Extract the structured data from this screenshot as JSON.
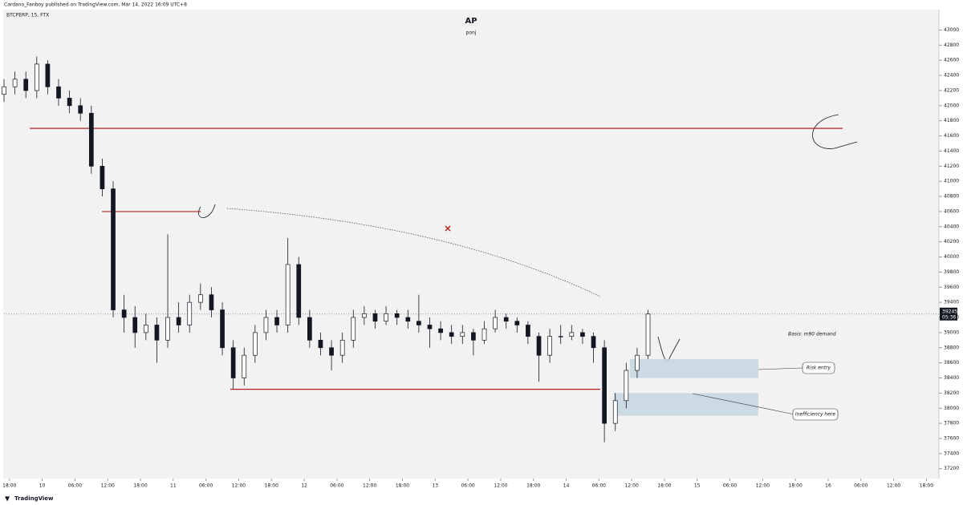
{
  "header": "Cardano_Fanboy published on TradingView.com, Mar 14, 2022 16:09 UTC+8",
  "footer": "TradingView",
  "chart_data": {
    "type": "candlestick",
    "symbol": "BTCPERP, 15, FTX",
    "title": "AP",
    "subtitle": "ponj",
    "x": [
      -1,
      1,
      3,
      5,
      7,
      9,
      11,
      13,
      15,
      17,
      19,
      21,
      23,
      25,
      27,
      29,
      31,
      33,
      35,
      37,
      39,
      41,
      43,
      45,
      47,
      49,
      51,
      53,
      55,
      57,
      59,
      61,
      63,
      65,
      67,
      69,
      71,
      73,
      75,
      77,
      79,
      81,
      83,
      85,
      87,
      89,
      91,
      93,
      95,
      97,
      99,
      101,
      103,
      105,
      107,
      109,
      111,
      113,
      115,
      117
    ],
    "open": [
      42150,
      42250,
      42350,
      42200,
      42550,
      42250,
      42100,
      42000,
      41900,
      41200,
      40900,
      39300,
      39200,
      39000,
      39100,
      38900,
      39200,
      39100,
      39400,
      39500,
      39300,
      38800,
      38400,
      38700,
      39000,
      39200,
      39100,
      39900,
      39200,
      38900,
      38800,
      38700,
      38900,
      39200,
      39250,
      39150,
      39250,
      39200,
      39150,
      39100,
      39050,
      39000,
      38950,
      39000,
      38900,
      39050,
      39200,
      39150,
      39100,
      38950,
      38700,
      38950,
      38950,
      39000,
      38950,
      38800,
      37800,
      38100,
      38500,
      38700
    ],
    "high": [
      42350,
      42450,
      42450,
      42650,
      42600,
      42350,
      42200,
      42100,
      42000,
      41300,
      41000,
      39500,
      39350,
      39250,
      39200,
      40300,
      39400,
      39500,
      39650,
      39600,
      39400,
      38900,
      38800,
      39100,
      39300,
      39300,
      40250,
      40000,
      39300,
      39000,
      38900,
      39000,
      39300,
      39350,
      39300,
      39350,
      39300,
      39300,
      39500,
      39200,
      39150,
      39100,
      39100,
      39050,
      39150,
      39300,
      39250,
      39200,
      39150,
      39000,
      39050,
      39100,
      39100,
      39050,
      39000,
      38900,
      38200,
      38600,
      38800,
      39300
    ],
    "low": [
      42050,
      42150,
      42100,
      42100,
      42150,
      42000,
      41900,
      41800,
      41100,
      40800,
      39200,
      39000,
      38800,
      38900,
      38600,
      38800,
      39000,
      39000,
      39300,
      39200,
      38700,
      38250,
      38300,
      38600,
      38900,
      39000,
      39000,
      39100,
      38800,
      38700,
      38500,
      38600,
      38800,
      39100,
      39050,
      39100,
      39100,
      39050,
      39000,
      38800,
      38900,
      38850,
      38850,
      38700,
      38850,
      39000,
      39050,
      39000,
      38850,
      38350,
      38600,
      38850,
      38900,
      38850,
      38600,
      37550,
      37700,
      38000,
      38400,
      38650
    ],
    "close": [
      42250,
      42350,
      42200,
      42550,
      42250,
      42100,
      42000,
      41900,
      41200,
      40900,
      39300,
      39200,
      39000,
      39100,
      38900,
      39200,
      39100,
      39400,
      39500,
      39300,
      38800,
      38400,
      38700,
      39000,
      39200,
      39100,
      39900,
      39200,
      38900,
      38800,
      38700,
      38900,
      39200,
      39250,
      39150,
      39250,
      39200,
      39150,
      39100,
      39050,
      39000,
      38950,
      39000,
      38900,
      39050,
      39200,
      39150,
      39100,
      38950,
      38700,
      38950,
      38950,
      39000,
      38950,
      38800,
      37800,
      38100,
      38500,
      38700,
      39245
    ],
    "up_color": "#ffffff",
    "down_color": "#131722",
    "xlim": [
      -1,
      170
    ],
    "xticks": [
      {
        "value": 0,
        "label": "18:00"
      },
      {
        "value": 6,
        "label": "10"
      },
      {
        "value": 12,
        "label": "06:00"
      },
      {
        "value": 18,
        "label": "12:00"
      },
      {
        "value": 24,
        "label": "18:00"
      },
      {
        "value": 30,
        "label": "11"
      },
      {
        "value": 36,
        "label": "06:00"
      },
      {
        "value": 42,
        "label": "12:00"
      },
      {
        "value": 48,
        "label": "18:00"
      },
      {
        "value": 54,
        "label": "12"
      },
      {
        "value": 60,
        "label": "06:00"
      },
      {
        "value": 66,
        "label": "12:00"
      },
      {
        "value": 72,
        "label": "18:00"
      },
      {
        "value": 78,
        "label": "13"
      },
      {
        "value": 84,
        "label": "06:00"
      },
      {
        "value": 90,
        "label": "12:00"
      },
      {
        "value": 96,
        "label": "18:00"
      },
      {
        "value": 102,
        "label": "14"
      },
      {
        "value": 108,
        "label": "06:00"
      },
      {
        "value": 114,
        "label": "12:00"
      },
      {
        "value": 120,
        "label": "18:00"
      },
      {
        "value": 126,
        "label": "15"
      },
      {
        "value": 132,
        "label": "06:00"
      },
      {
        "value": 138,
        "label": "12:00"
      },
      {
        "value": 144,
        "label": "18:00"
      },
      {
        "value": 150,
        "label": "16"
      },
      {
        "value": 156,
        "label": "06:00"
      },
      {
        "value": 162,
        "label": "12:00"
      },
      {
        "value": 168,
        "label": "18:00"
      }
    ],
    "ylim": [
      37070,
      43270
    ],
    "yticks": [
      37200,
      37400,
      37600,
      37800,
      38000,
      38200,
      38400,
      38600,
      38800,
      39000,
      39200,
      39400,
      39600,
      39800,
      40000,
      40200,
      40400,
      40600,
      40800,
      41000,
      41200,
      41400,
      41600,
      41800,
      42000,
      42200,
      42400,
      42600,
      42800,
      43000
    ],
    "countdown": "05:36",
    "levels": [
      41700,
      40600,
      38250
    ],
    "level_color": "#b22222",
    "zones": [
      [
        38650,
        38400
      ],
      [
        38200,
        37900
      ]
    ],
    "zone_color": "#c5d7e0",
    "annotations": [
      "Basis: m90 demand",
      "Risk entry",
      "Inefficiency here"
    ]
  }
}
